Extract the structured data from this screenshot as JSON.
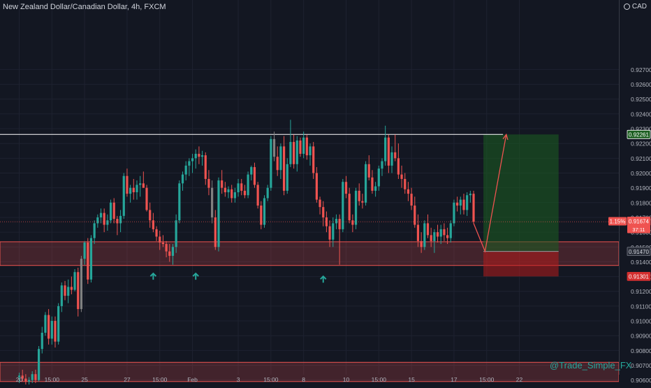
{
  "header": {
    "symbol_title": "New Zealand Dollar/Canadian Dollar, 4h, FXCM",
    "currency_label": "CAD"
  },
  "watermark": "@Trade_Simple_FX",
  "colors": {
    "background": "#131722",
    "up_candle": "#26a69a",
    "down_candle": "#ef5350",
    "neutral_candle": "#808080",
    "zone": "#ef5350",
    "target_zone": "#1b5e20",
    "stop_zone": "#b71c1c",
    "resistance_line": "#ffffff",
    "projection": "#ef5350",
    "grid": "#1e2230",
    "axis_text": "#b2b5be"
  },
  "chart_data": {
    "type": "candlestick",
    "title": "New Zealand Dollar/Canadian Dollar, 4h, FXCM",
    "y_axis": {
      "ylim": [
        0.9057,
        0.9317
      ],
      "ticks": [
        0.906,
        0.907,
        0.908,
        0.909,
        0.91,
        0.911,
        0.912,
        0.913,
        0.914,
        0.915,
        0.916,
        0.917,
        0.918,
        0.919,
        0.92,
        0.921,
        0.922,
        0.923,
        0.924,
        0.925,
        0.926,
        0.927
      ],
      "tick_labels": [
        "0.90600",
        "0.90700",
        "0.90800",
        "0.90900",
        "0.91000",
        "0.91100",
        "0.91200",
        "0.91300",
        "0.91400",
        "0.91500",
        "0.91600",
        "0.91700",
        "0.91800",
        "0.91900",
        "0.92000",
        "0.92100",
        "0.92200",
        "0.92300",
        "0.92400",
        "0.92500",
        "0.92600",
        "0.92700"
      ]
    },
    "x_axis": {
      "tick_labels": [
        "20",
        "15:00",
        "25",
        "27",
        "15:00",
        "Feb",
        "3",
        "15:00",
        "8",
        "10",
        "15:00",
        "15",
        "17",
        "15:00",
        "22"
      ],
      "tick_index": [
        0,
        10,
        20,
        33,
        43,
        53,
        67,
        77,
        87,
        100,
        110,
        120,
        133,
        143,
        153
      ]
    },
    "candles": [
      [
        0.9062,
        0.9065,
        0.9058,
        0.9063
      ],
      [
        0.9063,
        0.9067,
        0.9059,
        0.9061
      ],
      [
        0.9061,
        0.9064,
        0.9057,
        0.9059
      ],
      [
        0.9059,
        0.9062,
        0.9056,
        0.906
      ],
      [
        0.906,
        0.9066,
        0.9058,
        0.9064
      ],
      [
        0.9064,
        0.9067,
        0.9058,
        0.906
      ],
      [
        0.906,
        0.9083,
        0.9059,
        0.9081
      ],
      [
        0.9081,
        0.9096,
        0.9078,
        0.9092
      ],
      [
        0.9092,
        0.9106,
        0.909,
        0.9104
      ],
      [
        0.9104,
        0.9108,
        0.9084,
        0.9088
      ],
      [
        0.9088,
        0.9103,
        0.9084,
        0.91
      ],
      [
        0.91,
        0.9103,
        0.9082,
        0.9086
      ],
      [
        0.9086,
        0.9112,
        0.9084,
        0.911
      ],
      [
        0.911,
        0.9126,
        0.9106,
        0.9124
      ],
      [
        0.9124,
        0.9127,
        0.9114,
        0.9117
      ],
      [
        0.9117,
        0.9128,
        0.9112,
        0.9123
      ],
      [
        0.9123,
        0.913,
        0.9118,
        0.9121
      ],
      [
        0.9121,
        0.9135,
        0.912,
        0.9133
      ],
      [
        0.9133,
        0.9136,
        0.9103,
        0.9108
      ],
      [
        0.9108,
        0.9144,
        0.9106,
        0.9142
      ],
      [
        0.9142,
        0.9154,
        0.9138,
        0.9153
      ],
      [
        0.9153,
        0.9156,
        0.9125,
        0.9128
      ],
      [
        0.9128,
        0.9158,
        0.9126,
        0.9156
      ],
      [
        0.9156,
        0.9168,
        0.9152,
        0.9166
      ],
      [
        0.9166,
        0.9172,
        0.9163,
        0.917
      ],
      [
        0.917,
        0.9176,
        0.9166,
        0.9173
      ],
      [
        0.9173,
        0.9176,
        0.916,
        0.9165
      ],
      [
        0.9165,
        0.9172,
        0.9161,
        0.9168
      ],
      [
        0.9168,
        0.9182,
        0.9166,
        0.918
      ],
      [
        0.918,
        0.9183,
        0.9166,
        0.9169
      ],
      [
        0.9169,
        0.9171,
        0.9158,
        0.9166
      ],
      [
        0.9166,
        0.9175,
        0.916,
        0.9171
      ],
      [
        0.9171,
        0.92,
        0.9169,
        0.9198
      ],
      [
        0.9198,
        0.9203,
        0.9184,
        0.9186
      ],
      [
        0.9186,
        0.9192,
        0.918,
        0.919
      ],
      [
        0.919,
        0.9196,
        0.9182,
        0.9187
      ],
      [
        0.9187,
        0.9195,
        0.9182,
        0.9192
      ],
      [
        0.9192,
        0.9198,
        0.9184,
        0.9193
      ],
      [
        0.9193,
        0.9201,
        0.919,
        0.919
      ],
      [
        0.919,
        0.9192,
        0.9174,
        0.9175
      ],
      [
        0.9175,
        0.918,
        0.9163,
        0.9168
      ],
      [
        0.9168,
        0.9173,
        0.916,
        0.9162
      ],
      [
        0.9162,
        0.9164,
        0.9154,
        0.9157
      ],
      [
        0.9157,
        0.9161,
        0.9148,
        0.9153
      ],
      [
        0.9153,
        0.9158,
        0.915,
        0.9152
      ],
      [
        0.9152,
        0.9154,
        0.9143,
        0.9147
      ],
      [
        0.9147,
        0.9152,
        0.914,
        0.9144
      ],
      [
        0.9144,
        0.9152,
        0.9138,
        0.915
      ],
      [
        0.915,
        0.9172,
        0.9146,
        0.9168
      ],
      [
        0.9168,
        0.9195,
        0.9166,
        0.9193
      ],
      [
        0.9193,
        0.9201,
        0.9188,
        0.9199
      ],
      [
        0.9199,
        0.9208,
        0.9195,
        0.9205
      ],
      [
        0.9205,
        0.921,
        0.9198,
        0.9208
      ],
      [
        0.9208,
        0.9213,
        0.92,
        0.921
      ],
      [
        0.921,
        0.9216,
        0.9203,
        0.9213
      ],
      [
        0.9213,
        0.9218,
        0.9206,
        0.9211
      ],
      [
        0.9211,
        0.9215,
        0.9205,
        0.9212
      ],
      [
        0.9212,
        0.9214,
        0.9192,
        0.9196
      ],
      [
        0.9196,
        0.9202,
        0.9185,
        0.919
      ],
      [
        0.919,
        0.9195,
        0.9166,
        0.917
      ],
      [
        0.917,
        0.9175,
        0.9148,
        0.915
      ],
      [
        0.915,
        0.9197,
        0.9147,
        0.9195
      ],
      [
        0.9195,
        0.9202,
        0.9186,
        0.919
      ],
      [
        0.919,
        0.9194,
        0.9184,
        0.9187
      ],
      [
        0.9187,
        0.9191,
        0.9183,
        0.9189
      ],
      [
        0.9189,
        0.9192,
        0.918,
        0.9183
      ],
      [
        0.9183,
        0.919,
        0.918,
        0.9187
      ],
      [
        0.9187,
        0.9196,
        0.9184,
        0.9193
      ],
      [
        0.9193,
        0.9196,
        0.9185,
        0.9188
      ],
      [
        0.9188,
        0.9192,
        0.9183,
        0.9185
      ],
      [
        0.9185,
        0.9201,
        0.9183,
        0.9199
      ],
      [
        0.9199,
        0.9205,
        0.9195,
        0.9204
      ],
      [
        0.9204,
        0.9207,
        0.919,
        0.9192
      ],
      [
        0.9192,
        0.9194,
        0.9176,
        0.9178
      ],
      [
        0.9178,
        0.9181,
        0.9162,
        0.9165
      ],
      [
        0.9165,
        0.9185,
        0.9163,
        0.9183
      ],
      [
        0.9183,
        0.9192,
        0.9181,
        0.919
      ],
      [
        0.919,
        0.9225,
        0.9188,
        0.9223
      ],
      [
        0.9223,
        0.9228,
        0.9208,
        0.9211
      ],
      [
        0.9211,
        0.9218,
        0.9198,
        0.9202
      ],
      [
        0.9202,
        0.922,
        0.9196,
        0.9218
      ],
      [
        0.9218,
        0.9225,
        0.9185,
        0.9188
      ],
      [
        0.9188,
        0.921,
        0.9186,
        0.9206
      ],
      [
        0.9206,
        0.9236,
        0.9204,
        0.9221
      ],
      [
        0.9221,
        0.9226,
        0.9203,
        0.9206
      ],
      [
        0.9206,
        0.9225,
        0.9201,
        0.9222
      ],
      [
        0.9222,
        0.9224,
        0.9211,
        0.9213
      ],
      [
        0.9213,
        0.9228,
        0.921,
        0.9224
      ],
      [
        0.9224,
        0.9226,
        0.9209,
        0.9212
      ],
      [
        0.9212,
        0.922,
        0.9205,
        0.9218
      ],
      [
        0.9218,
        0.9221,
        0.9196,
        0.92
      ],
      [
        0.92,
        0.9204,
        0.918,
        0.9182
      ],
      [
        0.9182,
        0.9184,
        0.9172,
        0.9177
      ],
      [
        0.9177,
        0.9181,
        0.9164,
        0.917
      ],
      [
        0.917,
        0.9174,
        0.916,
        0.9164
      ],
      [
        0.9164,
        0.9168,
        0.915,
        0.9155
      ],
      [
        0.9155,
        0.917,
        0.915,
        0.9166
      ],
      [
        0.9166,
        0.9172,
        0.9162,
        0.9169
      ],
      [
        0.9169,
        0.9172,
        0.9138,
        0.9162
      ],
      [
        0.9162,
        0.9196,
        0.916,
        0.9194
      ],
      [
        0.9194,
        0.9198,
        0.9183,
        0.9186
      ],
      [
        0.9186,
        0.919,
        0.9166,
        0.9168
      ],
      [
        0.9168,
        0.9172,
        0.916,
        0.9165
      ],
      [
        0.9165,
        0.919,
        0.9162,
        0.9188
      ],
      [
        0.9188,
        0.9193,
        0.9178,
        0.9181
      ],
      [
        0.9181,
        0.9186,
        0.9176,
        0.918
      ],
      [
        0.918,
        0.9208,
        0.9178,
        0.9206
      ],
      [
        0.9206,
        0.9212,
        0.9195,
        0.9197
      ],
      [
        0.9197,
        0.9202,
        0.9186,
        0.9188
      ],
      [
        0.9188,
        0.9194,
        0.9184,
        0.9191
      ],
      [
        0.9191,
        0.9205,
        0.9188,
        0.9203
      ],
      [
        0.9203,
        0.921,
        0.9198,
        0.9208
      ],
      [
        0.9208,
        0.9232,
        0.9205,
        0.9224
      ],
      [
        0.9224,
        0.9226,
        0.92,
        0.9205
      ],
      [
        0.9205,
        0.9218,
        0.92,
        0.9214
      ],
      [
        0.9214,
        0.9226,
        0.9208,
        0.921
      ],
      [
        0.921,
        0.922,
        0.9196,
        0.9199
      ],
      [
        0.9199,
        0.9205,
        0.919,
        0.9196
      ],
      [
        0.9196,
        0.92,
        0.9186,
        0.9189
      ],
      [
        0.9189,
        0.9194,
        0.9181,
        0.9186
      ],
      [
        0.9186,
        0.919,
        0.9175,
        0.9178
      ],
      [
        0.9178,
        0.9184,
        0.9163,
        0.9165
      ],
      [
        0.9165,
        0.9172,
        0.915,
        0.9154
      ],
      [
        0.9154,
        0.916,
        0.9146,
        0.915
      ],
      [
        0.915,
        0.9168,
        0.9148,
        0.9166
      ],
      [
        0.9166,
        0.9172,
        0.9156,
        0.9158
      ],
      [
        0.9158,
        0.9163,
        0.915,
        0.9154
      ],
      [
        0.9154,
        0.9162,
        0.9146,
        0.916
      ],
      [
        0.916,
        0.9165,
        0.9153,
        0.9157
      ],
      [
        0.9157,
        0.9165,
        0.9152,
        0.9162
      ],
      [
        0.9162,
        0.9166,
        0.9154,
        0.9158
      ],
      [
        0.9158,
        0.9163,
        0.9152,
        0.9156
      ],
      [
        0.9156,
        0.9168,
        0.9153,
        0.9166
      ],
      [
        0.9166,
        0.9182,
        0.9164,
        0.918
      ],
      [
        0.918,
        0.9184,
        0.9174,
        0.9178
      ],
      [
        0.9178,
        0.9184,
        0.9172,
        0.9182
      ],
      [
        0.9182,
        0.9186,
        0.9172,
        0.9175
      ],
      [
        0.9175,
        0.9187,
        0.9171,
        0.9185
      ],
      [
        0.9185,
        0.9188,
        0.918,
        0.9186
      ],
      [
        0.9186,
        0.9188,
        0.9166,
        0.9167
      ]
    ],
    "neutral_candles": [
      19,
      59,
      78
    ],
    "resistance_level": 0.92261,
    "support_zones": [
      {
        "from": 0.91375,
        "to": 0.91535
      },
      {
        "from": 0.9059,
        "to": 0.9072
      }
    ],
    "position_tool": {
      "entry": 0.9147,
      "target": 0.92261,
      "stop": 0.91301,
      "start_index": 142,
      "end_index": 165
    },
    "projection_path": [
      {
        "index": 139,
        "price": 0.9166
      },
      {
        "index": 142.5,
        "price": 0.9147
      },
      {
        "index": 149,
        "price": 0.92261
      }
    ],
    "up_arrows": [
      {
        "index": 41,
        "price": 0.9134
      },
      {
        "index": 54,
        "price": 0.9134
      },
      {
        "index": 93,
        "price": 0.9132
      }
    ],
    "price_tags": [
      {
        "text": "0.92261",
        "price": 0.92261,
        "style": "resistance"
      },
      {
        "text": "0.91674",
        "price": 0.91674,
        "style": "last",
        "badge": "1.15%",
        "countdown": "37:11"
      },
      {
        "text": "0.91470",
        "price": 0.9147,
        "style": "entry"
      },
      {
        "text": "0.91301",
        "price": 0.91301,
        "style": "stop"
      }
    ]
  }
}
